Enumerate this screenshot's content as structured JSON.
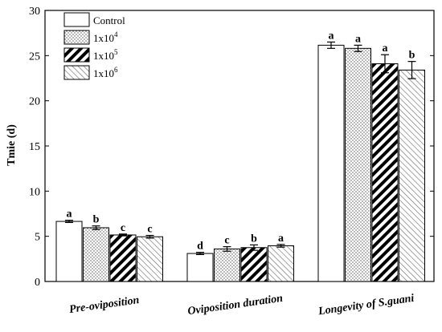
{
  "chart_data": {
    "type": "bar",
    "categories": [
      "Pre-oviposition",
      "Oviposition duration",
      "Longevity of S.guani"
    ],
    "series": [
      {
        "name": "Control",
        "legend_sup": "",
        "pattern": "solid",
        "values": [
          6.65,
          3.1,
          26.15
        ],
        "errors": [
          0.12,
          0.12,
          0.35
        ],
        "labels": [
          "a",
          "d",
          "a"
        ]
      },
      {
        "name": "1x10",
        "legend_sup": "4",
        "pattern": "dots",
        "values": [
          5.95,
          3.6,
          25.8
        ],
        "errors": [
          0.2,
          0.25,
          0.35
        ],
        "labels": [
          "b",
          "c",
          "a"
        ]
      },
      {
        "name": "1x10",
        "legend_sup": "5",
        "pattern": "diagonal-back",
        "values": [
          5.15,
          3.75,
          24.1
        ],
        "errors": [
          0.1,
          0.3,
          1.0
        ],
        "labels": [
          "c",
          "b",
          "a"
        ]
      },
      {
        "name": "1x10",
        "legend_sup": "6",
        "pattern": "diagonal-forward",
        "values": [
          4.95,
          3.95,
          23.4
        ],
        "errors": [
          0.15,
          0.15,
          0.95
        ],
        "labels": [
          "c",
          "a",
          "b"
        ]
      }
    ],
    "xlabel": "",
    "ylabel": "Tmie (d)",
    "ylim": [
      0,
      30
    ],
    "yticks": [
      0,
      5,
      10,
      15,
      20,
      25,
      30
    ],
    "grid": false,
    "legend_position": "top-left"
  }
}
